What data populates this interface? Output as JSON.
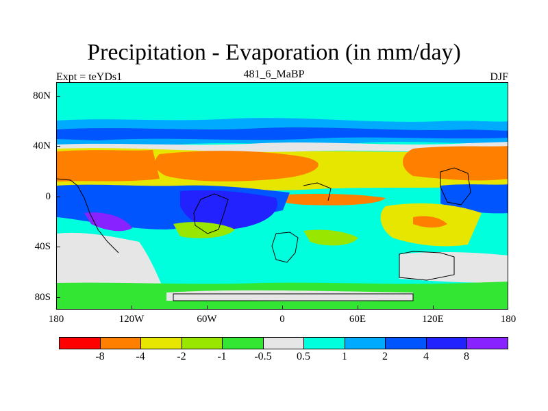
{
  "title": "Precipitation - Evaporation (in mm/day)",
  "subtitle_left": "Expt = teYDs1",
  "subtitle_center": "481_6_MaBP",
  "subtitle_right": "DJF",
  "y_axis": {
    "ticks": [
      "80N",
      "40N",
      "0",
      "40S",
      "80S"
    ],
    "range": [
      -90,
      90
    ]
  },
  "x_axis": {
    "ticks": [
      "180",
      "120W",
      "60W",
      "0",
      "60E",
      "120E",
      "180"
    ],
    "range": [
      -180,
      180
    ]
  },
  "colorbar": {
    "colors": [
      "#ff0000",
      "#ff8000",
      "#e6e600",
      "#99e600",
      "#33e633",
      "#e6e6e6",
      "#00ffdd",
      "#00aaff",
      "#0055ff",
      "#2222ff",
      "#8822ff"
    ],
    "labels": [
      "-8",
      "-4",
      "-2",
      "-1",
      "-0.5",
      "0.5",
      "1",
      "2",
      "4",
      "8"
    ]
  },
  "palette": {
    "orange": "#ff8000",
    "yellow": "#e6e600",
    "lightgreen": "#99e600",
    "green": "#33e633",
    "grey": "#e6e6e6",
    "cyan": "#00ffdd",
    "lightblue": "#00aaff",
    "blue": "#0055ff",
    "darkblue": "#2222ff",
    "purple": "#8822ff"
  }
}
